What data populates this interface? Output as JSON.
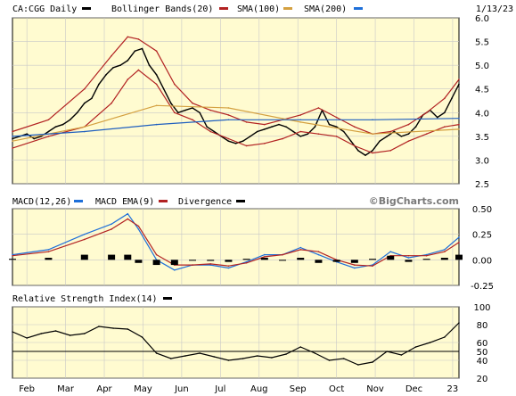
{
  "colors": {
    "panel_bg": "#fffbd0",
    "grid": "#c8c8c8",
    "price": "#000000",
    "bollinger": "#b22222",
    "sma100": "#b22222",
    "sma200": "#d4a040",
    "sma200_line": "#1f5fbf",
    "macd": "#1e6fd9",
    "macd_ema": "#b22222",
    "divergence": "#000000",
    "rsi": "#000000"
  },
  "chart_data": [
    {
      "type": "line",
      "panel": "price",
      "title": "CA:CGG Daily",
      "date": "1/13/23",
      "legend": [
        "CA:CGG Daily",
        "Bollinger Bands(20)",
        "SMA(100)",
        "SMA(200)"
      ],
      "ylim": [
        2.5,
        6.0
      ],
      "yticks": [
        "6.0",
        "5.5",
        "5.0",
        "4.5",
        "4.0",
        "3.5",
        "3.0",
        "2.5"
      ],
      "x_months": [
        "Feb",
        "Mar",
        "Apr",
        "May",
        "Jun",
        "Jul",
        "Aug",
        "Sep",
        "Oct",
        "Nov",
        "Dec",
        "23"
      ],
      "series": [
        {
          "name": "CA:CGG Daily",
          "x": [
            0,
            4,
            8,
            12,
            16,
            20,
            24,
            28,
            32,
            36,
            40,
            44,
            48,
            52,
            56,
            60,
            64,
            68,
            72,
            76,
            80,
            84,
            88,
            92,
            96,
            100,
            104,
            108,
            112,
            116,
            120,
            124,
            128,
            132,
            136,
            140,
            144,
            148,
            152,
            156,
            160,
            164,
            168,
            172,
            176,
            180,
            184,
            188,
            192,
            196,
            200,
            204,
            208,
            212,
            216,
            220,
            224,
            228,
            232,
            236,
            240,
            244,
            248
          ],
          "values": [
            3.45,
            3.5,
            3.55,
            3.45,
            3.5,
            3.6,
            3.7,
            3.75,
            3.85,
            4.0,
            4.2,
            4.3,
            4.6,
            4.8,
            4.95,
            5.0,
            5.1,
            5.3,
            5.35,
            5.0,
            4.8,
            4.5,
            4.2,
            4.0,
            4.05,
            4.1,
            4.0,
            3.7,
            3.6,
            3.5,
            3.4,
            3.35,
            3.4,
            3.5,
            3.6,
            3.65,
            3.7,
            3.75,
            3.7,
            3.6,
            3.5,
            3.55,
            3.7,
            4.05,
            3.75,
            3.7,
            3.6,
            3.4,
            3.2,
            3.1,
            3.2,
            3.4,
            3.5,
            3.6,
            3.5,
            3.55,
            3.7,
            3.95,
            4.05,
            3.9,
            4.0,
            4.3,
            4.6
          ]
        },
        {
          "name": "Bollinger Bands(20)",
          "x": [
            0,
            20,
            40,
            55,
            64,
            70,
            80,
            90,
            100,
            110,
            120,
            130,
            140,
            150,
            160,
            170,
            180,
            190,
            200,
            210,
            220,
            230,
            240,
            248
          ],
          "values": [
            3.25,
            3.5,
            3.7,
            4.2,
            4.7,
            4.9,
            4.6,
            4.0,
            3.85,
            3.6,
            3.45,
            3.3,
            3.35,
            3.45,
            3.6,
            3.55,
            3.5,
            3.3,
            3.15,
            3.2,
            3.4,
            3.55,
            3.7,
            3.75
          ]
        },
        {
          "name": "Bollinger Bands(20) Upper",
          "x": [
            0,
            20,
            40,
            55,
            64,
            70,
            80,
            90,
            100,
            110,
            120,
            130,
            140,
            150,
            160,
            170,
            180,
            190,
            200,
            210,
            220,
            230,
            240,
            248
          ],
          "values": [
            3.6,
            3.85,
            4.5,
            5.2,
            5.6,
            5.55,
            5.3,
            4.6,
            4.2,
            4.05,
            3.95,
            3.8,
            3.75,
            3.85,
            3.95,
            4.1,
            3.9,
            3.7,
            3.55,
            3.6,
            3.75,
            4.0,
            4.3,
            4.7
          ]
        },
        {
          "name": "SMA(100)",
          "x": [
            0,
            40,
            80,
            120,
            160,
            200,
            248
          ],
          "values": [
            3.4,
            3.7,
            4.15,
            4.1,
            3.8,
            3.55,
            3.65
          ]
        },
        {
          "name": "SMA(200)",
          "x": [
            0,
            40,
            80,
            120,
            160,
            200,
            248
          ],
          "values": [
            3.5,
            3.6,
            3.75,
            3.85,
            3.85,
            3.85,
            3.88
          ]
        }
      ]
    },
    {
      "type": "line",
      "panel": "macd",
      "legend": [
        "MACD(12,26)",
        "MACD EMA(9)",
        "Divergence"
      ],
      "watermark": "©BigCharts.com",
      "ylim": [
        -0.25,
        0.5
      ],
      "yticks": [
        "0.50",
        "0.25",
        "0.00",
        "-0.25"
      ],
      "series": [
        {
          "name": "MACD(12,26)",
          "x": [
            0,
            20,
            40,
            55,
            64,
            70,
            80,
            90,
            100,
            110,
            120,
            130,
            140,
            150,
            160,
            170,
            180,
            190,
            200,
            210,
            220,
            230,
            240,
            248
          ],
          "values": [
            0.05,
            0.1,
            0.25,
            0.35,
            0.45,
            0.3,
            0.0,
            -0.1,
            -0.05,
            -0.05,
            -0.08,
            -0.02,
            0.05,
            0.05,
            0.12,
            0.05,
            -0.02,
            -0.08,
            -0.05,
            0.08,
            0.02,
            0.05,
            0.1,
            0.22
          ]
        },
        {
          "name": "MACD EMA(9)",
          "x": [
            0,
            20,
            40,
            55,
            64,
            70,
            80,
            90,
            100,
            110,
            120,
            130,
            140,
            150,
            160,
            170,
            180,
            190,
            200,
            210,
            220,
            230,
            240,
            248
          ],
          "values": [
            0.04,
            0.08,
            0.2,
            0.3,
            0.4,
            0.33,
            0.05,
            -0.05,
            -0.05,
            -0.04,
            -0.06,
            -0.03,
            0.03,
            0.05,
            0.1,
            0.08,
            0.0,
            -0.05,
            -0.06,
            0.04,
            0.04,
            0.04,
            0.08,
            0.17
          ]
        },
        {
          "name": "Divergence",
          "x": [
            0,
            20,
            40,
            55,
            64,
            70,
            80,
            90,
            100,
            110,
            120,
            130,
            140,
            150,
            160,
            170,
            180,
            190,
            200,
            210,
            220,
            230,
            240,
            248
          ],
          "values": [
            0.01,
            0.02,
            0.05,
            0.05,
            0.05,
            -0.03,
            -0.05,
            -0.05,
            0.0,
            -0.01,
            -0.02,
            0.01,
            0.02,
            0.0,
            0.02,
            -0.03,
            -0.02,
            -0.03,
            0.01,
            0.04,
            -0.02,
            0.01,
            0.02,
            0.05
          ]
        }
      ]
    },
    {
      "type": "line",
      "panel": "rsi",
      "legend": [
        "Relative Strength Index(14)"
      ],
      "ylim": [
        20,
        100
      ],
      "yticks": [
        "100",
        "80",
        "60",
        "50",
        "40",
        "20"
      ],
      "series": [
        {
          "name": "Relative Strength Index(14)",
          "x": [
            0,
            8,
            16,
            24,
            32,
            40,
            48,
            56,
            64,
            72,
            80,
            88,
            96,
            104,
            112,
            120,
            128,
            136,
            144,
            152,
            160,
            168,
            176,
            184,
            192,
            200,
            208,
            216,
            224,
            232,
            240,
            248
          ],
          "values": [
            72,
            65,
            70,
            73,
            68,
            70,
            78,
            76,
            75,
            66,
            48,
            42,
            45,
            48,
            44,
            40,
            42,
            45,
            43,
            47,
            55,
            48,
            40,
            42,
            35,
            38,
            50,
            46,
            55,
            60,
            66,
            82
          ]
        }
      ]
    }
  ]
}
